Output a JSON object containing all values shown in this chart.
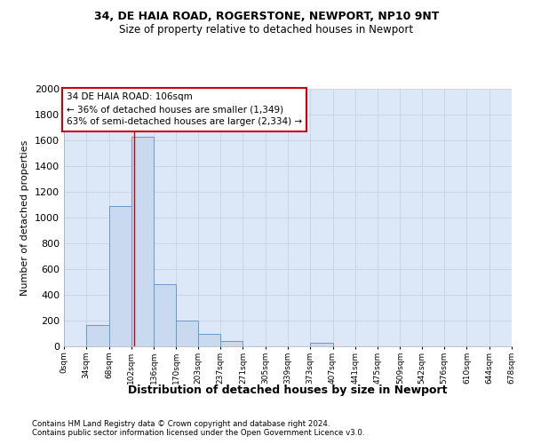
{
  "title1": "34, DE HAIA ROAD, ROGERSTONE, NEWPORT, NP10 9NT",
  "title2": "Size of property relative to detached houses in Newport",
  "xlabel": "Distribution of detached houses by size in Newport",
  "ylabel": "Number of detached properties",
  "footnote1": "Contains HM Land Registry data © Crown copyright and database right 2024.",
  "footnote2": "Contains public sector information licensed under the Open Government Licence v3.0.",
  "bin_edges": [
    0,
    34,
    68,
    102,
    136,
    170,
    203,
    237,
    271,
    305,
    339,
    373,
    407,
    441,
    475,
    509,
    542,
    576,
    610,
    644,
    678
  ],
  "bar_values": [
    0,
    165,
    1090,
    1630,
    480,
    200,
    100,
    40,
    0,
    0,
    0,
    25,
    0,
    0,
    0,
    0,
    0,
    0,
    0,
    0
  ],
  "bar_color": "#c9d9f0",
  "bar_edge_color": "#6699cc",
  "grid_color": "#c0cfe0",
  "bg_color": "#dce8f8",
  "property_size": 106,
  "annotation_text_line1": "34 DE HAIA ROAD: 106sqm",
  "annotation_text_line2": "← 36% of detached houses are smaller (1,349)",
  "annotation_text_line3": "63% of semi-detached houses are larger (2,334) →",
  "annotation_box_color": "#cc0000",
  "marker_line_color": "#cc0000",
  "ylim": [
    0,
    2000
  ],
  "tick_labels": [
    "0sqm",
    "34sqm",
    "68sqm",
    "102sqm",
    "136sqm",
    "170sqm",
    "203sqm",
    "237sqm",
    "271sqm",
    "305sqm",
    "339sqm",
    "373sqm",
    "407sqm",
    "441sqm",
    "475sqm",
    "509sqm",
    "542sqm",
    "576sqm",
    "610sqm",
    "644sqm",
    "678sqm"
  ]
}
